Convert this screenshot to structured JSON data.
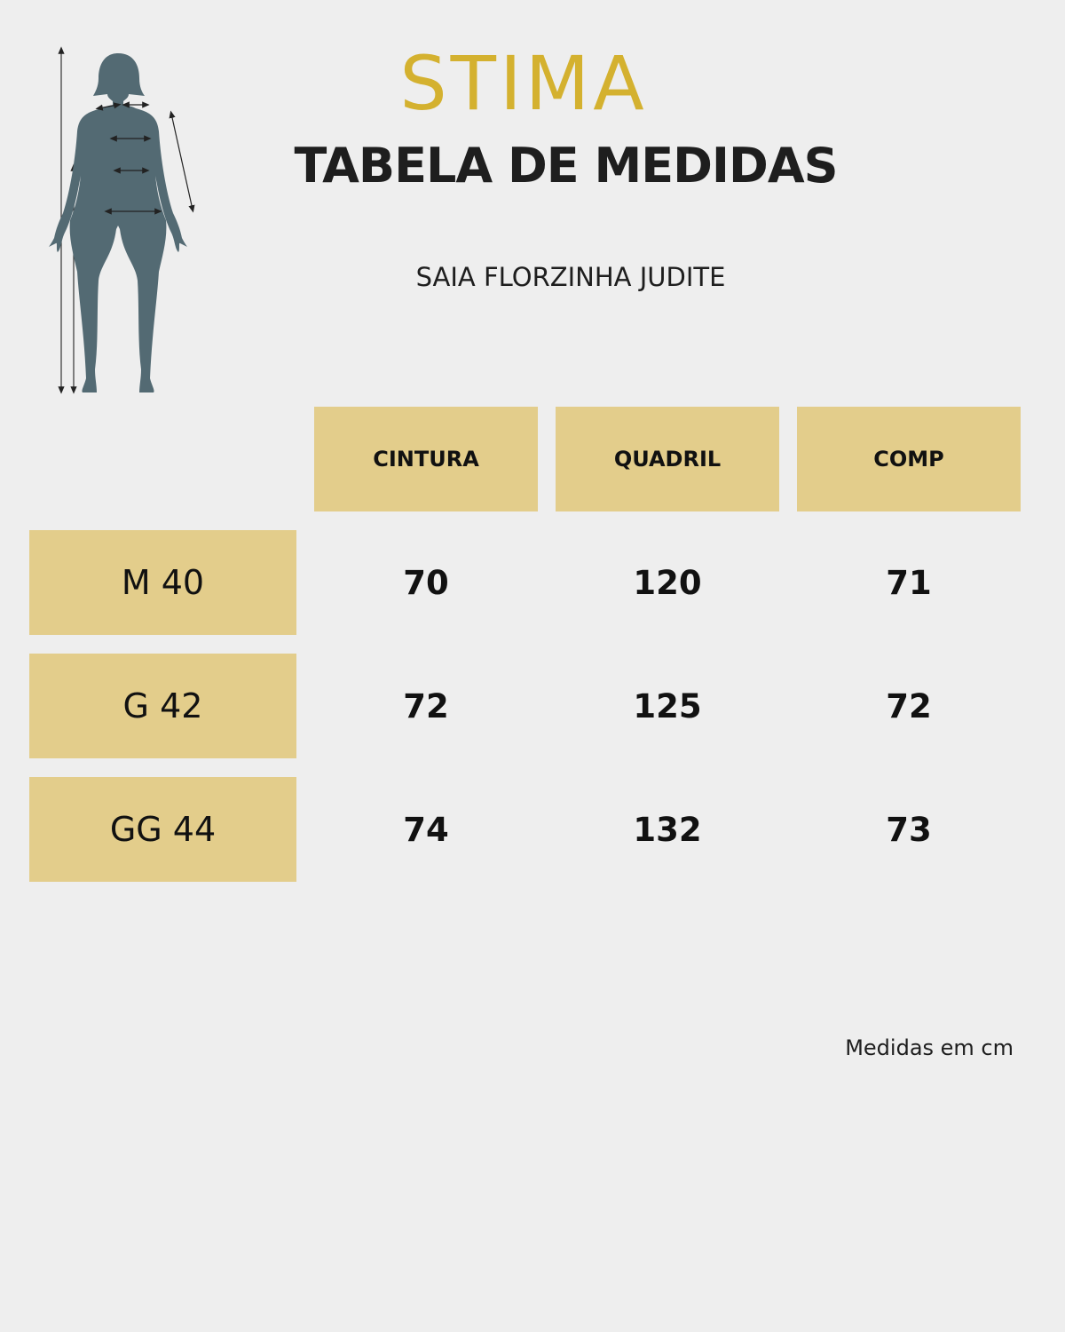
{
  "brand": {
    "logo_text": "STIMA"
  },
  "header": {
    "title": "TABELA DE MEDIDAS",
    "product": "SAIA FLORZINHA JUDITE"
  },
  "table": {
    "columns": [
      "CINTURA",
      "QUADRIL",
      "COMP"
    ],
    "rows": [
      {
        "size": "M 40",
        "values": [
          "70",
          "120",
          "71"
        ]
      },
      {
        "size": "G 42",
        "values": [
          "72",
          "125",
          "72"
        ]
      },
      {
        "size": "GG 44",
        "values": [
          "74",
          "132",
          "73"
        ]
      }
    ]
  },
  "footer": {
    "note": "Medidas em cm"
  },
  "colors": {
    "background": "#eeeeee",
    "accent_gold": "#d4b12f",
    "cell_fill": "#e3cd8b",
    "figure": "#536a73",
    "text": "#1e1e1e"
  }
}
